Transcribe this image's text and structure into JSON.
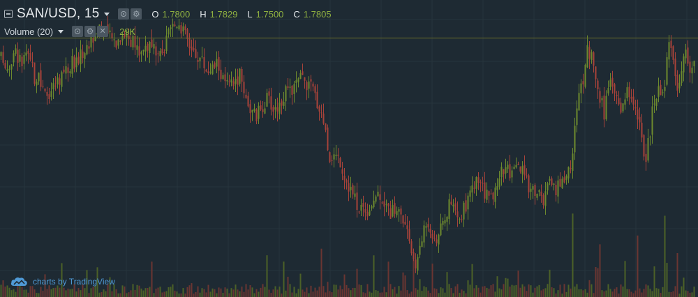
{
  "legend": {
    "symbol_title": "SAN/USD, 15",
    "ohlc": [
      {
        "key": "O",
        "value": "1.7800"
      },
      {
        "key": "H",
        "value": "1.7829"
      },
      {
        "key": "L",
        "value": "1.7500"
      },
      {
        "key": "C",
        "value": "1.7805"
      }
    ]
  },
  "volume_legend": {
    "title": "Volume (20)",
    "value": "29K"
  },
  "watermark": {
    "text": "charts by TradingView",
    "icon": "cloud-icon"
  },
  "colors": {
    "background": "#1e2a33",
    "grid": "#27343d",
    "up": "#6d8a2e",
    "down": "#a8433a",
    "last_price_line": "#6a6e2a",
    "legend_value": "#8fb040",
    "watermark": "#4f9ad6"
  },
  "chart_data": {
    "type": "candlestick",
    "symbol": "SAN/USD",
    "interval": "15",
    "grid": true,
    "last_price": 1.7805,
    "price_range": [
      1.58,
      1.81
    ],
    "anchor_closes": [
      [
        0,
        1.765
      ],
      [
        10,
        1.758
      ],
      [
        20,
        1.77
      ],
      [
        30,
        1.761
      ],
      [
        40,
        1.766
      ],
      [
        48,
        1.75
      ],
      [
        55,
        1.748
      ],
      [
        62,
        1.735
      ],
      [
        70,
        1.739
      ],
      [
        78,
        1.745
      ],
      [
        86,
        1.752
      ],
      [
        94,
        1.757
      ],
      [
        102,
        1.761
      ],
      [
        110,
        1.764
      ],
      [
        118,
        1.77
      ],
      [
        126,
        1.775
      ],
      [
        134,
        1.785
      ],
      [
        142,
        1.791
      ],
      [
        150,
        1.784
      ],
      [
        158,
        1.78
      ],
      [
        166,
        1.778
      ],
      [
        174,
        1.785
      ],
      [
        182,
        1.782
      ],
      [
        190,
        1.776
      ],
      [
        198,
        1.77
      ],
      [
        206,
        1.775
      ],
      [
        214,
        1.774
      ],
      [
        222,
        1.768
      ],
      [
        230,
        1.764
      ],
      [
        238,
        1.78
      ],
      [
        246,
        1.789
      ],
      [
        254,
        1.794
      ],
      [
        262,
        1.785
      ],
      [
        270,
        1.775
      ],
      [
        278,
        1.769
      ],
      [
        286,
        1.765
      ],
      [
        294,
        1.757
      ],
      [
        302,
        1.756
      ],
      [
        310,
        1.762
      ],
      [
        318,
        1.748
      ],
      [
        326,
        1.743
      ],
      [
        334,
        1.745
      ],
      [
        342,
        1.752
      ],
      [
        350,
        1.738
      ],
      [
        358,
        1.724
      ],
      [
        366,
        1.72
      ],
      [
        374,
        1.728
      ],
      [
        382,
        1.734
      ],
      [
        390,
        1.726
      ],
      [
        398,
        1.728
      ],
      [
        406,
        1.737
      ],
      [
        414,
        1.738
      ],
      [
        422,
        1.744
      ],
      [
        430,
        1.75
      ],
      [
        438,
        1.745
      ],
      [
        446,
        1.742
      ],
      [
        454,
        1.73
      ],
      [
        462,
        1.718
      ],
      [
        470,
        1.69
      ],
      [
        478,
        1.69
      ],
      [
        486,
        1.686
      ],
      [
        494,
        1.672
      ],
      [
        502,
        1.662
      ],
      [
        510,
        1.652
      ],
      [
        518,
        1.65
      ],
      [
        526,
        1.648
      ],
      [
        534,
        1.656
      ],
      [
        542,
        1.662
      ],
      [
        550,
        1.652
      ],
      [
        558,
        1.645
      ],
      [
        566,
        1.65
      ],
      [
        574,
        1.642
      ],
      [
        582,
        1.628
      ],
      [
        590,
        1.612
      ],
      [
        596,
        1.605
      ],
      [
        602,
        1.622
      ],
      [
        608,
        1.64
      ],
      [
        614,
        1.637
      ],
      [
        620,
        1.625
      ],
      [
        626,
        1.628
      ],
      [
        634,
        1.636
      ],
      [
        642,
        1.65
      ],
      [
        650,
        1.646
      ],
      [
        658,
        1.64
      ],
      [
        666,
        1.652
      ],
      [
        674,
        1.662
      ],
      [
        682,
        1.67
      ],
      [
        690,
        1.664
      ],
      [
        698,
        1.655
      ],
      [
        706,
        1.66
      ],
      [
        714,
        1.676
      ],
      [
        722,
        1.682
      ],
      [
        730,
        1.672
      ],
      [
        738,
        1.68
      ],
      [
        746,
        1.678
      ],
      [
        754,
        1.668
      ],
      [
        762,
        1.664
      ],
      [
        770,
        1.66
      ],
      [
        778,
        1.655
      ],
      [
        786,
        1.668
      ],
      [
        794,
        1.66
      ],
      [
        802,
        1.67
      ],
      [
        810,
        1.675
      ],
      [
        818,
        1.685
      ],
      [
        826,
        1.735
      ],
      [
        834,
        1.748
      ],
      [
        840,
        1.774
      ],
      [
        848,
        1.762
      ],
      [
        856,
        1.74
      ],
      [
        864,
        1.722
      ],
      [
        872,
        1.744
      ],
      [
        880,
        1.736
      ],
      [
        888,
        1.726
      ],
      [
        896,
        1.742
      ],
      [
        904,
        1.735
      ],
      [
        912,
        1.72
      ],
      [
        918,
        1.7
      ],
      [
        924,
        1.685
      ],
      [
        930,
        1.71
      ],
      [
        936,
        1.735
      ],
      [
        944,
        1.742
      ],
      [
        950,
        1.735
      ],
      [
        956,
        1.78
      ],
      [
        962,
        1.77
      ],
      [
        968,
        1.742
      ],
      [
        974,
        1.754
      ],
      [
        980,
        1.77
      ],
      [
        988,
        1.758
      ]
    ],
    "volume_range": [
      0,
      40000
    ]
  }
}
